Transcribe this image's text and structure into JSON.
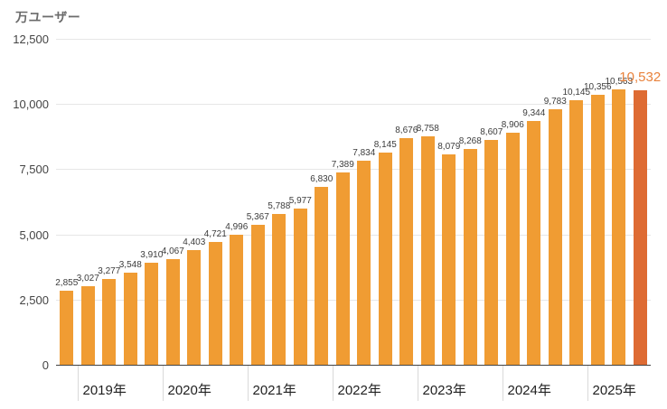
{
  "chart_title": "万ユーザー",
  "colors": {
    "bar": "#f09c33",
    "highlight_bar": "#de6b33",
    "highlight_label": "#e8823c",
    "value_label": "#3c3c3c",
    "axis_label": "#444444",
    "gridline": "#e6e6e6",
    "baseline": "#424242",
    "year_tick_line": "#d9d9d9"
  },
  "chart_data": {
    "type": "bar",
    "title": "万ユーザー",
    "ylabel": "万ユーザー",
    "xlabel": "",
    "values": [
      2855,
      3027,
      3277,
      3548,
      3910,
      4067,
      4403,
      4721,
      4996,
      5367,
      5788,
      5977,
      6830,
      7389,
      7834,
      8145,
      8676,
      8758,
      8079,
      8268,
      8607,
      8906,
      9344,
      9783,
      10145,
      10356,
      10563,
      10532
    ],
    "bar_labels": [
      "2,855",
      "3,027",
      "3,277",
      "3,548",
      "3,910",
      "4,067",
      "4,403",
      "4,721",
      "4,996",
      "5,367",
      "5,788",
      "5,977",
      "6,830",
      "7,389",
      "7,834",
      "8,145",
      "8,676",
      "8,758",
      "8,079",
      "8,268",
      "8,607",
      "8,906",
      "9,344",
      "9,783",
      "10,145",
      "10,356",
      "10,563",
      "10,532"
    ],
    "highlight_index": 27,
    "ylim": [
      0,
      12500
    ],
    "y_ticks": [
      0,
      2500,
      5000,
      7500,
      10000,
      12500
    ],
    "y_tick_labels": [
      "0",
      "2,500",
      "5,000",
      "7,500",
      "10,000",
      "12,500"
    ],
    "x_year_ticks": [
      {
        "label": "2019年",
        "before_bar_index": 1
      },
      {
        "label": "2020年",
        "before_bar_index": 5
      },
      {
        "label": "2021年",
        "before_bar_index": 9
      },
      {
        "label": "2022年",
        "before_bar_index": 13
      },
      {
        "label": "2023年",
        "before_bar_index": 17
      },
      {
        "label": "2024年",
        "before_bar_index": 21
      },
      {
        "label": "2025年",
        "before_bar_index": 25
      }
    ],
    "grid": true,
    "legend_position": "none"
  }
}
